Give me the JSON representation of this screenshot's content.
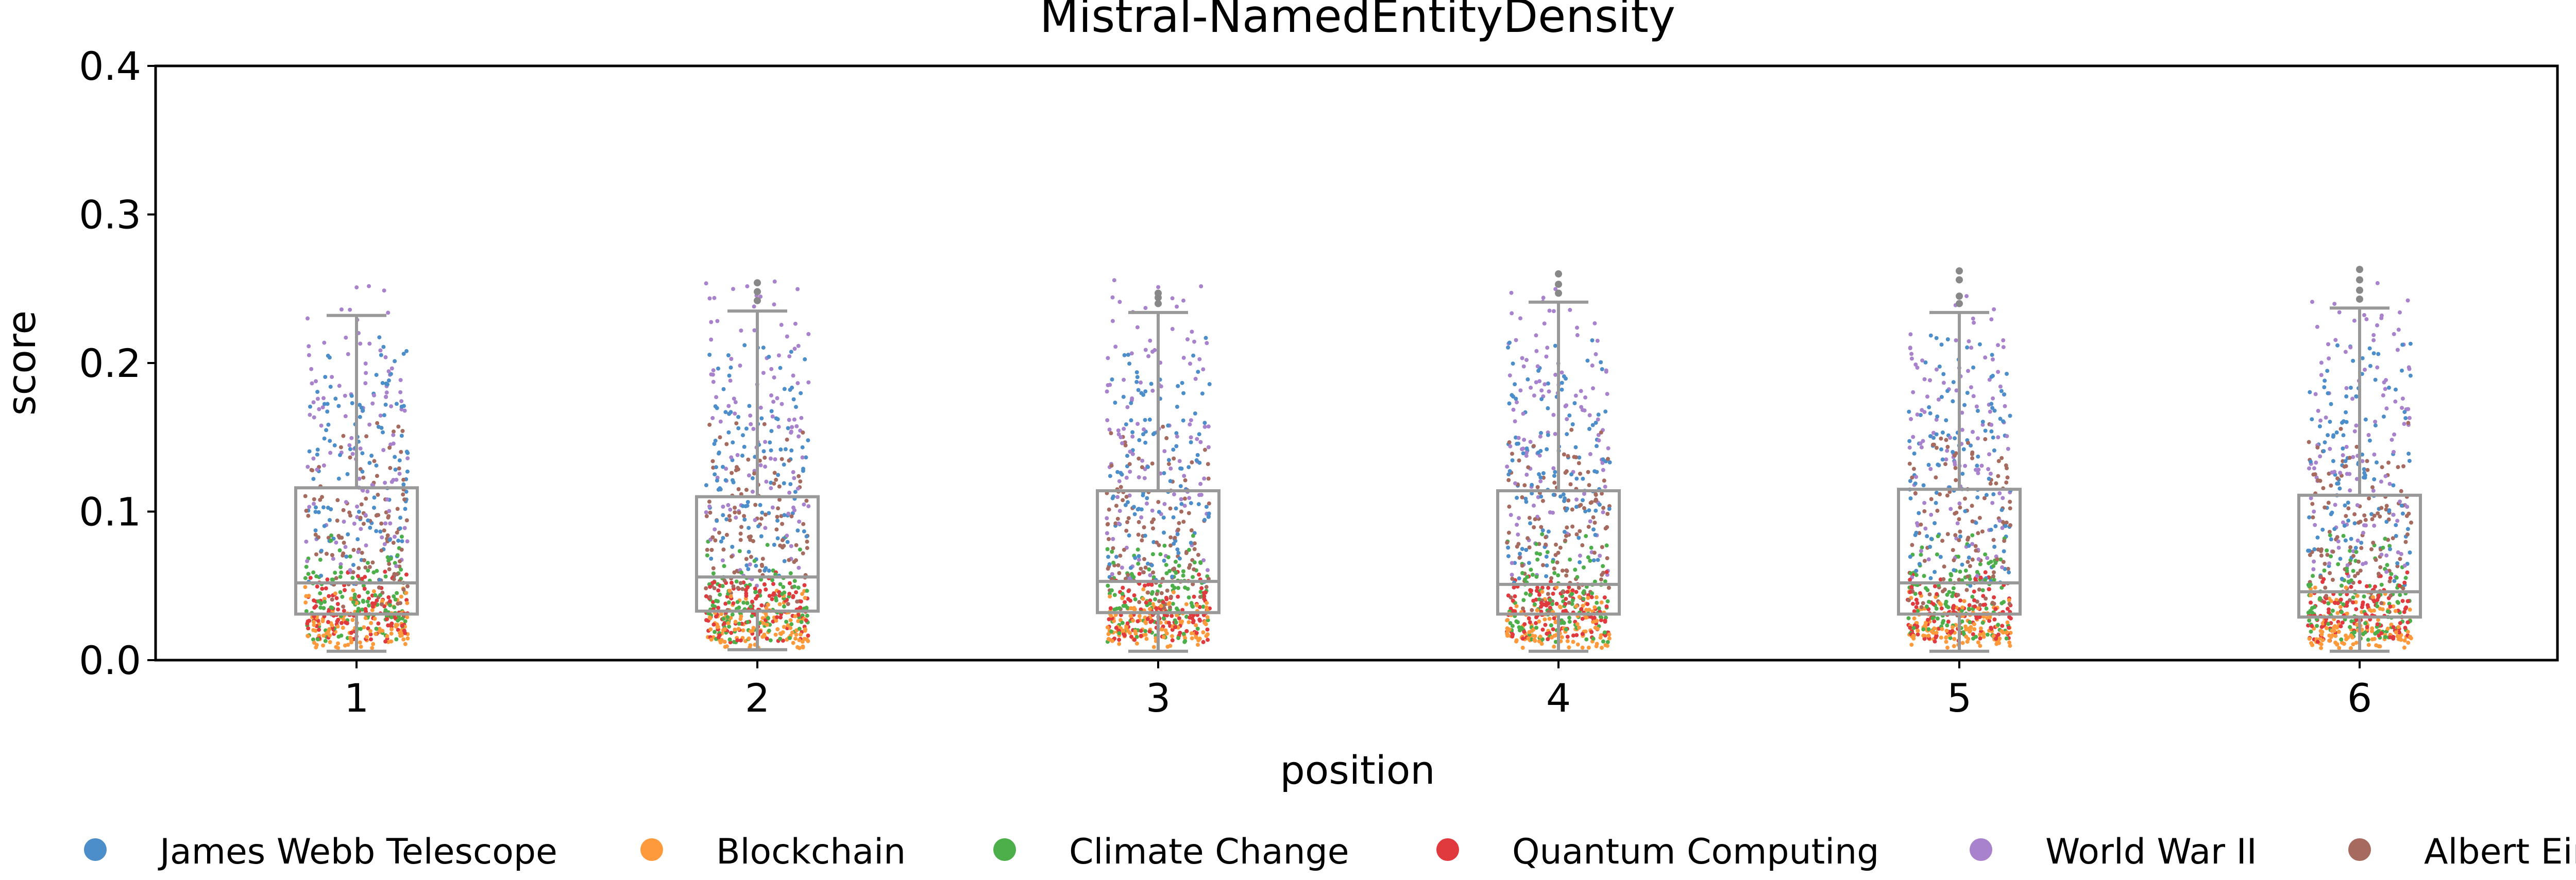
{
  "chart_data": {
    "type": "box-strip",
    "title": "Mistral-NamedEntityDensity",
    "xlabel": "position",
    "ylabel": "score",
    "ylim": [
      0.0,
      0.4
    ],
    "yticks": [
      0.0,
      0.1,
      0.2,
      0.3,
      0.4
    ],
    "ytick_labels": [
      "0.0",
      "0.1",
      "0.2",
      "0.3",
      "0.4"
    ],
    "categories": [
      "1",
      "2",
      "3",
      "4",
      "5",
      "6"
    ],
    "legend_position": "bottom",
    "series": [
      {
        "name": "James Webb Telescope",
        "color": "#4C8EC9",
        "range": [
          0.05,
          0.22
        ],
        "center": 0.13
      },
      {
        "name": "Blockchain",
        "color": "#FF9A3C",
        "range": [
          0.008,
          0.05
        ],
        "center": 0.022
      },
      {
        "name": "Climate Change",
        "color": "#4DAF4A",
        "range": [
          0.012,
          0.085
        ],
        "center": 0.04
      },
      {
        "name": "Quantum Computing",
        "color": "#E0393E",
        "range": [
          0.012,
          0.06
        ],
        "center": 0.032
      },
      {
        "name": "World War II",
        "color": "#A882CC",
        "range": [
          0.05,
          0.26
        ],
        "center": 0.15
      },
      {
        "name": "Albert Einstein",
        "color": "#A66B5E",
        "range": [
          0.03,
          0.16
        ],
        "center": 0.085
      }
    ],
    "boxes": [
      {
        "position": "1",
        "whisker_low": 0.006,
        "q1": 0.031,
        "median": 0.052,
        "q3": 0.116,
        "whisker_high": 0.232,
        "outliers": []
      },
      {
        "position": "2",
        "whisker_low": 0.007,
        "q1": 0.033,
        "median": 0.056,
        "q3": 0.11,
        "whisker_high": 0.235,
        "outliers": [
          0.242,
          0.248,
          0.254
        ]
      },
      {
        "position": "3",
        "whisker_low": 0.006,
        "q1": 0.032,
        "median": 0.053,
        "q3": 0.114,
        "whisker_high": 0.234,
        "outliers": [
          0.24,
          0.244,
          0.247
        ]
      },
      {
        "position": "4",
        "whisker_low": 0.006,
        "q1": 0.031,
        "median": 0.051,
        "q3": 0.114,
        "whisker_high": 0.241,
        "outliers": [
          0.247,
          0.253,
          0.26
        ]
      },
      {
        "position": "5",
        "whisker_low": 0.006,
        "q1": 0.031,
        "median": 0.052,
        "q3": 0.115,
        "whisker_high": 0.234,
        "outliers": [
          0.24,
          0.245,
          0.256,
          0.262
        ]
      },
      {
        "position": "6",
        "whisker_low": 0.006,
        "q1": 0.029,
        "median": 0.046,
        "q3": 0.111,
        "whisker_high": 0.237,
        "outliers": [
          0.243,
          0.249,
          0.256,
          0.263
        ]
      }
    ]
  }
}
